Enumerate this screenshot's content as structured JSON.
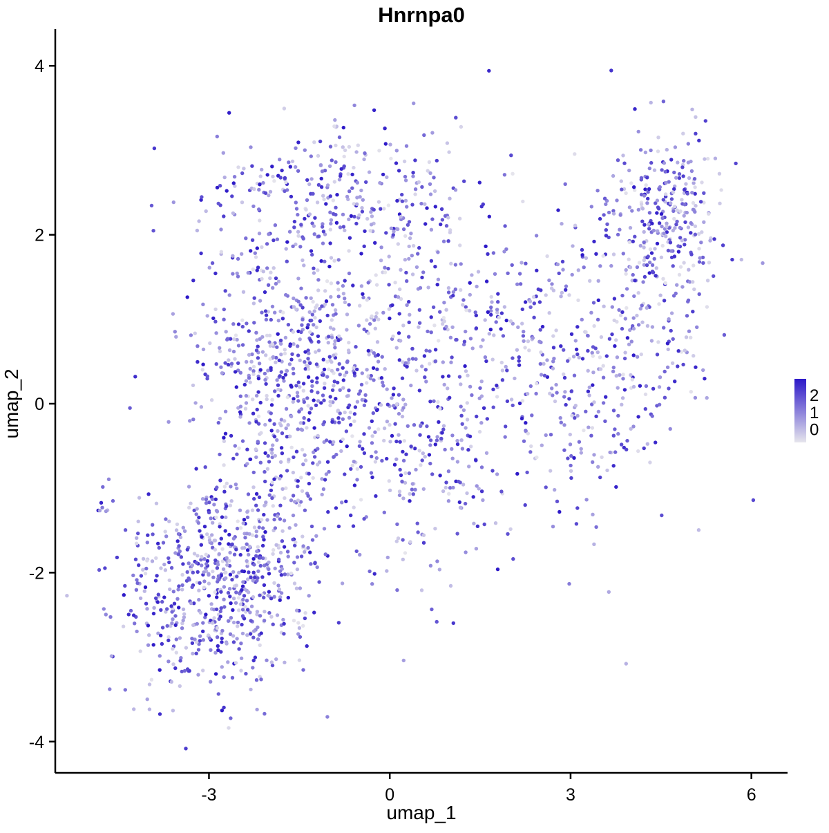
{
  "chart_data": {
    "type": "scatter",
    "title": "Hnrnpa0",
    "xlabel": "umap_1",
    "ylabel": "umap_2",
    "xlim": [
      -5.55,
      6.6
    ],
    "ylim": [
      -4.37,
      4.37
    ],
    "x_ticks": [
      -3,
      0,
      3,
      6
    ],
    "y_ticks": [
      -4,
      -2,
      0,
      2,
      4
    ],
    "grid": false,
    "background": "#ffffff",
    "axis_color": "#000000",
    "point_radius": 2.7,
    "color_scale": {
      "low": "#E6E5EC",
      "high": "#2C18C8",
      "value_min": 0,
      "value_max": 2.4
    },
    "legend": {
      "position": "right",
      "labels": [
        "2",
        "1",
        "0"
      ]
    },
    "seed": 42,
    "n_points_total": 2829,
    "clusters": [
      {
        "name": "lower-left-dense",
        "cx": -3.0,
        "cy": -2.3,
        "sx": 0.75,
        "sy": 0.6,
        "n": 520
      },
      {
        "name": "lower-left-bridge",
        "cx": -2.2,
        "cy": -1.55,
        "sx": 0.55,
        "sy": 0.5,
        "n": 180
      },
      {
        "name": "mid-left-main",
        "cx": -1.7,
        "cy": 0.6,
        "sx": 0.85,
        "sy": 1.0,
        "n": 620
      },
      {
        "name": "center",
        "cx": -0.3,
        "cy": 0.1,
        "sx": 0.9,
        "sy": 0.9,
        "n": 300
      },
      {
        "name": "top-band",
        "cx": -0.6,
        "cy": 2.45,
        "sx": 1.05,
        "sy": 0.42,
        "n": 230
      },
      {
        "name": "center-right-sparse",
        "cx": 0.9,
        "cy": -0.6,
        "sx": 0.8,
        "sy": 0.9,
        "n": 170
      },
      {
        "name": "upper-middle-sparse",
        "cx": 1.3,
        "cy": 1.2,
        "sx": 0.7,
        "sy": 0.8,
        "n": 120
      },
      {
        "name": "right-arm-lower",
        "cx": 3.0,
        "cy": 0.3,
        "sx": 0.85,
        "sy": 1.0,
        "n": 260
      },
      {
        "name": "right-arm-upper",
        "cx": 4.3,
        "cy": 1.3,
        "sx": 0.65,
        "sy": 0.95,
        "n": 220
      },
      {
        "name": "top-right-dense",
        "cx": 4.65,
        "cy": 2.35,
        "sx": 0.42,
        "sy": 0.42,
        "n": 200
      },
      {
        "name": "far-left-outlier-clump",
        "cx": -4.68,
        "cy": -1.25,
        "sx": 0.09,
        "sy": 0.13,
        "n": 9
      }
    ]
  }
}
